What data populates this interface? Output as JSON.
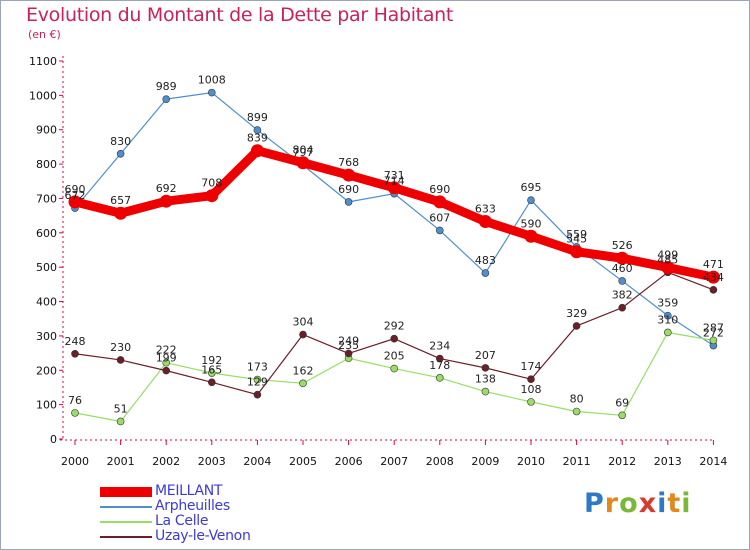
{
  "title": "Evolution du Montant de la Dette par Habitant",
  "unit": "(en €)",
  "logo": "Proxiti",
  "colors": {
    "title": "#c8215c",
    "axis": "#e0003c",
    "legend_text": "#3b3bd6"
  },
  "chart_data": {
    "type": "line",
    "title": "Evolution du Montant de la Dette par Habitant",
    "ylabel": "(en €)",
    "x": [
      "2000",
      "2001",
      "2002",
      "2003",
      "2004",
      "2005",
      "2006",
      "2007",
      "2008",
      "2009",
      "2010",
      "2011",
      "2012",
      "2013",
      "2014"
    ],
    "ylim": [
      0,
      1100
    ],
    "yticks": [
      "0",
      "100",
      "200",
      "300",
      "400",
      "500",
      "600",
      "700",
      "800",
      "900",
      "1000",
      "1100"
    ],
    "grid": false,
    "legend_position": "bottom-left",
    "series": [
      {
        "name": "MEILLANT",
        "color": "#ee0000",
        "values": [
          690,
          657,
          692,
          708,
          839,
          804,
          768,
          731,
          690,
          633,
          590,
          545,
          526,
          499,
          471
        ]
      },
      {
        "name": "Arpheuilles",
        "color": "#4f8fd0",
        "values": [
          672,
          830,
          989,
          1008,
          899,
          797,
          690,
          714,
          607,
          483,
          695,
          559,
          460,
          359,
          272
        ]
      },
      {
        "name": "La Celle",
        "color": "#99dd66",
        "values": [
          76,
          51,
          222,
          192,
          173,
          162,
          235,
          205,
          178,
          138,
          108,
          80,
          69,
          310,
          287
        ]
      },
      {
        "name": "Uzay-le-Venon",
        "color": "#6b1f28",
        "values": [
          248,
          230,
          199,
          165,
          129,
          304,
          249,
          292,
          234,
          207,
          174,
          329,
          382,
          485,
          434
        ]
      }
    ]
  }
}
